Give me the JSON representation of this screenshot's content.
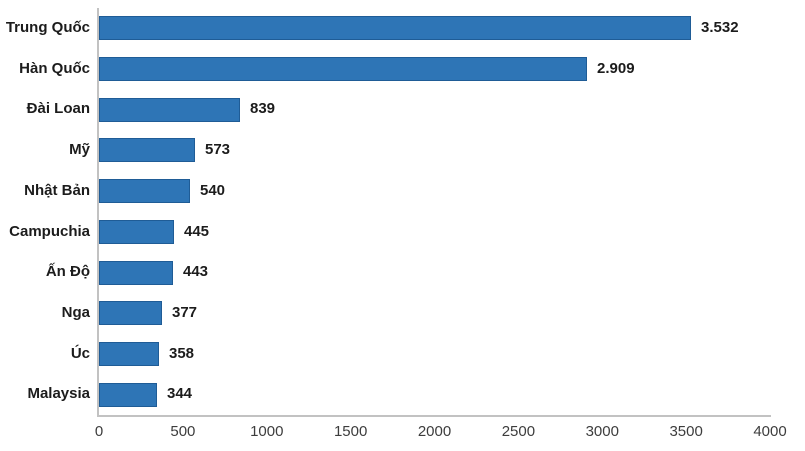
{
  "chart_data": {
    "type": "bar",
    "orientation": "horizontal",
    "title": "",
    "xlabel": "",
    "ylabel": "",
    "categories": [
      "Trung Quốc",
      "Hàn Quốc",
      "Đài Loan",
      "Mỹ",
      "Nhật Bản",
      "Campuchia",
      "Ấn Độ",
      "Nga",
      "Úc",
      "Malaysia"
    ],
    "values": [
      3532,
      2909,
      839,
      573,
      540,
      445,
      443,
      377,
      358,
      344
    ],
    "value_labels": [
      "3.532",
      "2.909",
      "839",
      "573",
      "540",
      "445",
      "443",
      "377",
      "358",
      "344"
    ],
    "xlim": [
      0,
      4000
    ],
    "x_ticks": [
      0,
      500,
      1000,
      1500,
      2000,
      2500,
      3000,
      3500,
      4000
    ],
    "x_tick_labels": [
      "0",
      "500",
      "1000",
      "1500",
      "2000",
      "2500",
      "3000",
      "3500",
      "4000"
    ],
    "grid": false,
    "legend": false,
    "data_labels": true,
    "colors": {
      "bar_fill": "#2e75b6",
      "bar_border": "#1f5c96",
      "axis_line": "#c2c2c2",
      "label_text": "#1c1c1c",
      "tick_text": "#3d3d3d",
      "background": "#ffffff"
    }
  }
}
